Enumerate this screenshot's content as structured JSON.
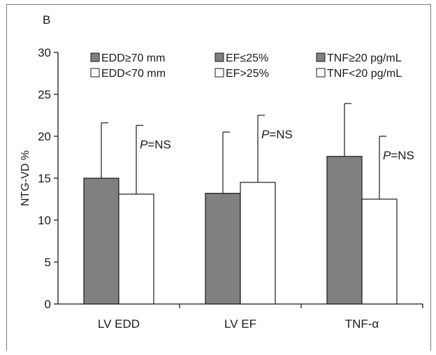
{
  "chart_data": {
    "type": "bar",
    "panel_label": "B",
    "ylabel": "NTG-VD %",
    "ylim": [
      0,
      30
    ],
    "yticks": [
      0,
      5,
      10,
      15,
      20,
      25,
      30
    ],
    "categories": [
      "LV EDD",
      "LV EF",
      "TNF-α"
    ],
    "groups": [
      {
        "category": "LV EDD",
        "bars": [
          {
            "legend": "EDD≥70 mm",
            "value": 15.0,
            "error": 6.6,
            "color": "#808080"
          },
          {
            "legend": "EDD<70 mm",
            "value": 13.1,
            "error": 8.2,
            "color": "#ffffff"
          }
        ],
        "annotation": {
          "italic": "P",
          "text": "=NS"
        }
      },
      {
        "category": "LV EF",
        "bars": [
          {
            "legend": "EF≤25%",
            "value": 13.2,
            "error": 7.3,
            "color": "#808080"
          },
          {
            "legend": "EF>25%",
            "value": 14.5,
            "error": 8.0,
            "color": "#ffffff"
          }
        ],
        "annotation": {
          "italic": "P",
          "text": "=NS"
        }
      },
      {
        "category": "TNF-α",
        "bars": [
          {
            "legend": "TNF≥20 pg/mL",
            "value": 17.6,
            "error": 6.3,
            "color": "#808080"
          },
          {
            "legend": "TNF<20 pg/mL",
            "value": 12.5,
            "error": 7.5,
            "color": "#ffffff"
          }
        ],
        "annotation": {
          "italic": "P",
          "text": "=NS"
        }
      }
    ],
    "legend_placement": "top",
    "grid": false
  }
}
